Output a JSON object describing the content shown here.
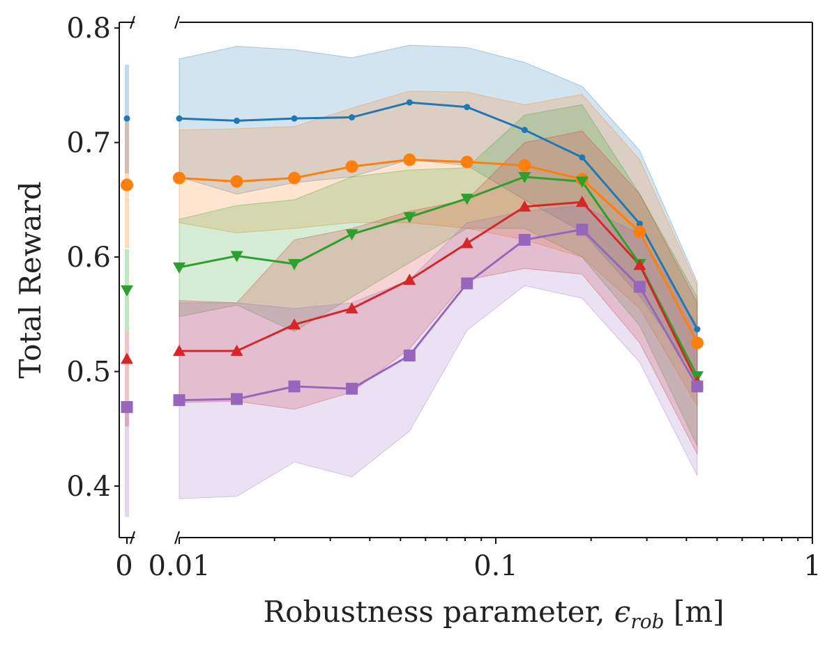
{
  "chart_data": {
    "type": "line",
    "xscale": "log",
    "xlabel": {
      "main": "Robustness parameter, ",
      "symbol": "ϵ",
      "subscript": "rob",
      "unit": " [m]"
    },
    "ylabel": "Total Reward",
    "ylim": [
      0.355,
      0.805
    ],
    "xlim": [
      0.01,
      1
    ],
    "y_ticks": [
      0.4,
      0.5,
      0.6,
      0.7,
      0.8
    ],
    "y_tick_labels": [
      "0.4",
      "0.5",
      "0.6",
      "0.7",
      "0.8"
    ],
    "x_ticks": [
      0.01,
      0.1,
      1
    ],
    "x_tick_labels": [
      "0.01",
      "0.1",
      "1"
    ],
    "zero_tick_label": "0",
    "x": [
      0.01,
      0.0152,
      0.0231,
      0.0351,
      0.0534,
      0.0811,
      0.1233,
      0.1874,
      0.2848,
      0.4329
    ],
    "series": [
      {
        "name": "blue",
        "color": "#1f77b4",
        "marker": "dot",
        "zero_value": 0.721,
        "zero_band": [
          0.673,
          0.768
        ],
        "values": [
          0.721,
          0.719,
          0.721,
          0.722,
          0.735,
          0.731,
          0.711,
          0.687,
          0.629,
          0.537
        ],
        "lower": [
          0.67,
          0.655,
          0.665,
          0.67,
          0.685,
          0.68,
          0.65,
          0.622,
          0.566,
          0.495
        ],
        "upper": [
          0.773,
          0.784,
          0.781,
          0.774,
          0.785,
          0.783,
          0.77,
          0.749,
          0.693,
          0.578
        ]
      },
      {
        "name": "orange",
        "color": "#ff7f0e",
        "marker": "circle",
        "zero_value": 0.663,
        "zero_band": [
          0.608,
          0.718
        ],
        "values": [
          0.669,
          0.666,
          0.669,
          0.679,
          0.685,
          0.683,
          0.68,
          0.668,
          0.622,
          0.525
        ],
        "lower": [
          0.63,
          0.621,
          0.625,
          0.63,
          0.63,
          0.625,
          0.615,
          0.6,
          0.555,
          0.47
        ],
        "upper": [
          0.711,
          0.712,
          0.714,
          0.73,
          0.745,
          0.744,
          0.733,
          0.742,
          0.685,
          0.575
        ]
      },
      {
        "name": "green",
        "color": "#2ca02c",
        "marker": "triangle-down",
        "zero_value": 0.571,
        "zero_band": [
          0.535,
          0.607
        ],
        "values": [
          0.591,
          0.601,
          0.594,
          0.62,
          0.635,
          0.651,
          0.67,
          0.666,
          0.594,
          0.496
        ],
        "lower": [
          0.548,
          0.558,
          0.535,
          0.565,
          0.595,
          0.625,
          0.625,
          0.6,
          0.54,
          0.435
        ],
        "upper": [
          0.633,
          0.645,
          0.65,
          0.67,
          0.676,
          0.678,
          0.724,
          0.733,
          0.655,
          0.565
        ]
      },
      {
        "name": "red",
        "color": "#d62728",
        "marker": "triangle-up",
        "zero_value": 0.511,
        "zero_band": [
          0.452,
          0.535
        ],
        "values": [
          0.518,
          0.518,
          0.541,
          0.555,
          0.58,
          0.612,
          0.644,
          0.648,
          0.593,
          0.491
        ],
        "lower": [
          0.473,
          0.474,
          0.467,
          0.482,
          0.52,
          0.58,
          0.59,
          0.585,
          0.525,
          0.428
        ],
        "upper": [
          0.562,
          0.56,
          0.615,
          0.625,
          0.64,
          0.65,
          0.7,
          0.71,
          0.655,
          0.56
        ]
      },
      {
        "name": "purple",
        "color": "#9467bd",
        "marker": "square",
        "zero_value": 0.469,
        "zero_band": [
          0.373,
          0.47
        ],
        "values": [
          0.475,
          0.476,
          0.487,
          0.485,
          0.514,
          0.577,
          0.615,
          0.624,
          0.574,
          0.487
        ],
        "lower": [
          0.389,
          0.391,
          0.421,
          0.408,
          0.448,
          0.536,
          0.575,
          0.564,
          0.508,
          0.409
        ],
        "upper": [
          0.56,
          0.56,
          0.555,
          0.56,
          0.58,
          0.63,
          0.64,
          0.645,
          0.62,
          0.54
        ]
      }
    ]
  }
}
